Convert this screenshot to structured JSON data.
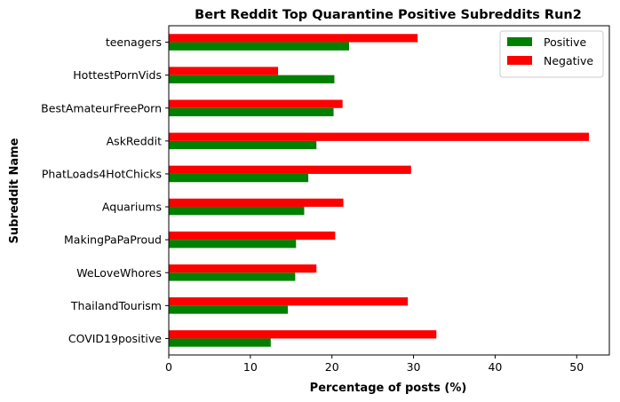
{
  "chart_data": {
    "type": "bar",
    "orientation": "horizontal",
    "title": "Bert Reddit Top Quarantine Positive Subreddits Run2",
    "xlabel": "Percentage of posts (%)",
    "ylabel": "Subreddit Name",
    "xlim": [
      0,
      54
    ],
    "xticks": [
      0,
      10,
      20,
      30,
      40,
      50
    ],
    "categories": [
      "COVID19positive",
      "ThailandTourism",
      "WeLoveWhores",
      "MakingPaPaProud",
      "Aquariums",
      "PhatLoads4HotChicks",
      "AskReddit",
      "BestAmateurFreePorn",
      "HottestPornVids",
      "teenagers"
    ],
    "series": [
      {
        "name": "Positive",
        "color": "#008000",
        "values": [
          12.5,
          14.6,
          15.5,
          15.6,
          16.6,
          17.1,
          18.1,
          20.2,
          20.3,
          22.1
        ]
      },
      {
        "name": "Negative",
        "color": "#ff0000",
        "values": [
          32.8,
          29.3,
          18.1,
          20.4,
          21.4,
          29.7,
          51.5,
          21.3,
          13.4,
          30.5
        ]
      }
    ],
    "legend_position": "top-right",
    "grid": false
  }
}
